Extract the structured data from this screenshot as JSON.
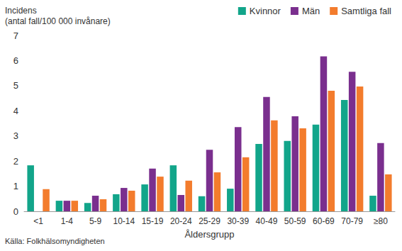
{
  "chart_data": {
    "type": "bar",
    "y_label": "Incidens\n(antal fall/100 000 invånare)",
    "x_label": "Åldersgrupp",
    "source": "Källa: Folkhälsomyndigheten",
    "categories": [
      "<1",
      "1-4",
      "5-9",
      "10-14",
      "15-19",
      "20-24",
      "25-29",
      "30-39",
      "40-49",
      "50-59",
      "60-69",
      "70-79",
      "≥80"
    ],
    "series": [
      {
        "name": "Kvinnor",
        "color": "#12a58a",
        "values": [
          1.83,
          0.42,
          0.33,
          0.68,
          1.07,
          1.83,
          0.6,
          0.9,
          2.68,
          2.8,
          3.45,
          4.43,
          0.62
        ]
      },
      {
        "name": "Män",
        "color": "#7a2f8e",
        "values": [
          0,
          0.42,
          0.62,
          0.93,
          1.7,
          0.65,
          2.45,
          3.35,
          4.55,
          3.78,
          6.17,
          5.55,
          2.72
        ]
      },
      {
        "name": "Samtliga fall",
        "color": "#f37c2d",
        "values": [
          0.88,
          0.42,
          0.48,
          0.82,
          1.38,
          1.22,
          1.55,
          2.15,
          3.62,
          3.3,
          4.8,
          4.97,
          1.47
        ]
      }
    ],
    "ylim": [
      0,
      7
    ],
    "yticks": [
      0,
      1,
      2,
      3,
      4,
      5,
      6,
      7
    ],
    "grid": false,
    "legend": "top-right"
  }
}
